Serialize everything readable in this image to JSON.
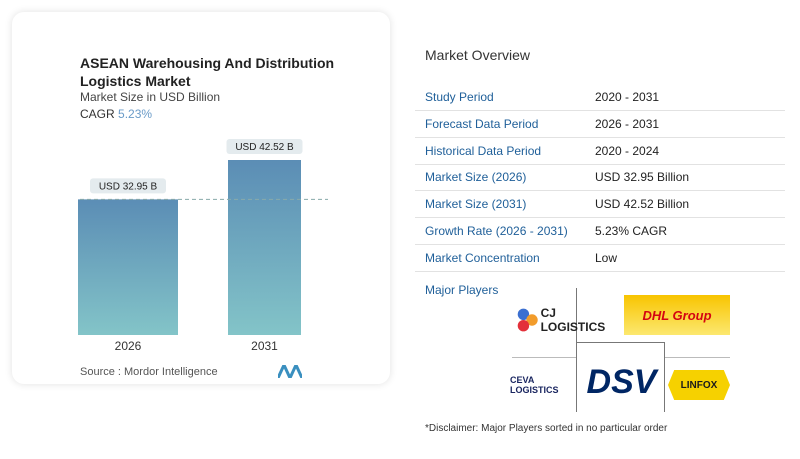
{
  "chart_data": {
    "type": "bar",
    "title": "ASEAN Warehousing And Distribution Logistics Market",
    "subtitle": "Market Size in USD Billion",
    "cagr_label": "CAGR",
    "cagr_value": "5.23%",
    "categories": [
      "2026",
      "2031"
    ],
    "values": [
      32.95,
      42.52
    ],
    "data_labels": [
      "USD 32.95 B",
      "USD 42.52 B"
    ],
    "ylim": [
      0,
      50
    ],
    "colors": {
      "top": "#5b8db5",
      "bottom": "#83c4c8"
    },
    "source": "Source : Mordor Intelligence"
  },
  "overview": {
    "title": "Market Overview",
    "rows": [
      {
        "k": "Study Period",
        "v": "2020 - 2031"
      },
      {
        "k": "Forecast Data Period",
        "v": "2026 - 2031"
      },
      {
        "k": "Historical Data Period",
        "v": "2020 - 2024"
      },
      {
        "k": "Market Size (2026)",
        "v": "USD 32.95 Billion"
      },
      {
        "k": "Market Size (2031)",
        "v": "USD 42.52 Billion"
      },
      {
        "k": "Growth Rate (2026 - 2031)",
        "v": "5.23% CAGR"
      },
      {
        "k": "Market Concentration",
        "v": "Low"
      }
    ],
    "major_players_label": "Major Players",
    "players": [
      "CJ LOGISTICS",
      "DHL Group",
      "CEVA LOGISTICS",
      "DSV",
      "LINFOX"
    ],
    "disclaimer": "*Disclaimer: Major Players sorted in no particular order"
  }
}
